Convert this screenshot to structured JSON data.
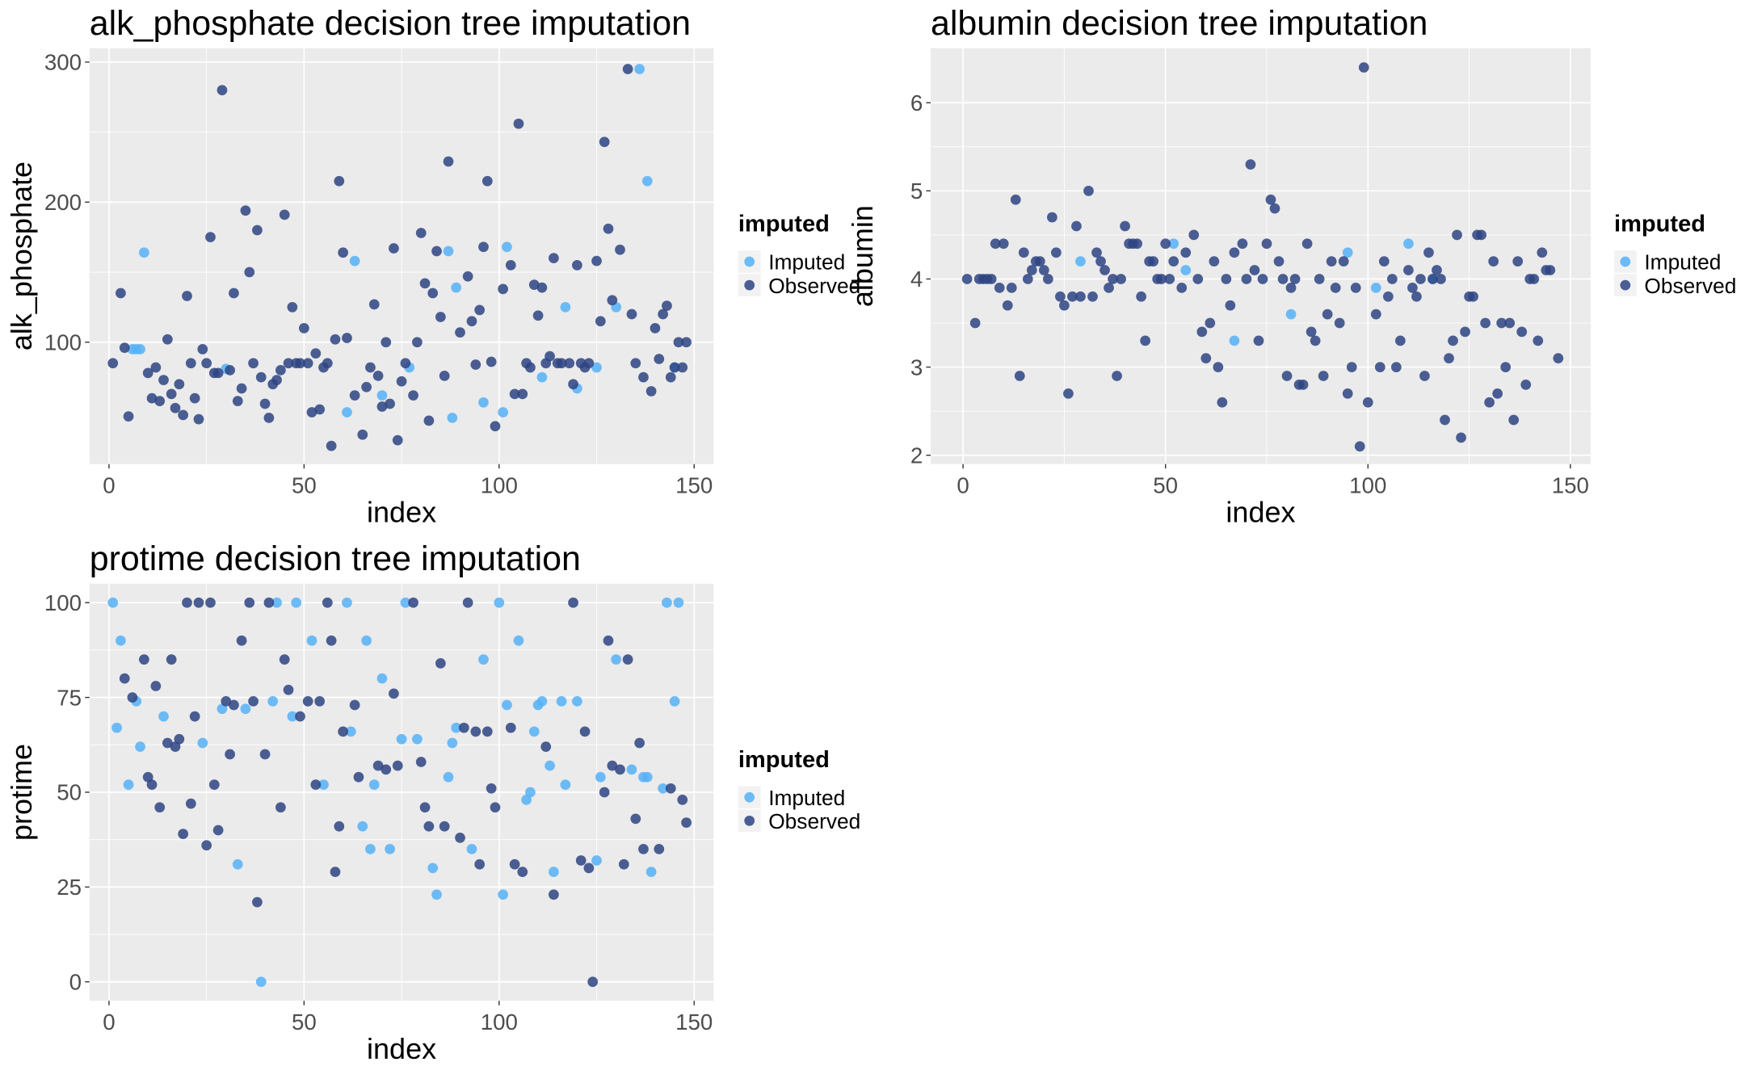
{
  "chart_data": [
    {
      "type": "scatter",
      "title": "alk_phosphate decision tree imputation",
      "x_label": "index",
      "y_label": "alk_phosphate",
      "legend_title": "imputed",
      "xlim": [
        -5,
        155
      ],
      "ylim": [
        13,
        310
      ],
      "xticks": [
        0,
        50,
        100,
        150
      ],
      "yticks": [
        100,
        200,
        300
      ],
      "grid": true,
      "legend": "right",
      "series": [
        {
          "name": "Imputed",
          "color": "#56B1F7",
          "x": [
            6,
            7,
            8,
            9,
            30,
            61,
            63,
            70,
            77,
            87,
            88,
            89,
            96,
            101,
            102,
            111,
            117,
            120,
            125,
            130,
            136,
            138,
            145
          ],
          "values": [
            95,
            95,
            95,
            164,
            81,
            50,
            158,
            62,
            82,
            165,
            46,
            139,
            57,
            50,
            168,
            75,
            125,
            67,
            82,
            125,
            295,
            215,
            82
          ]
        },
        {
          "name": "Observed",
          "color": "#2E4482",
          "x": [
            1,
            3,
            4,
            5,
            10,
            11,
            12,
            13,
            14,
            15,
            16,
            17,
            18,
            19,
            20,
            21,
            22,
            23,
            24,
            25,
            26,
            27,
            28,
            29,
            31,
            32,
            33,
            34,
            35,
            36,
            37,
            38,
            39,
            40,
            41,
            42,
            43,
            44,
            45,
            46,
            47,
            48,
            49,
            50,
            51,
            52,
            53,
            54,
            55,
            56,
            57,
            58,
            59,
            60,
            61,
            63,
            65,
            66,
            67,
            68,
            69,
            70,
            71,
            72,
            73,
            74,
            75,
            76,
            78,
            79,
            80,
            81,
            82,
            83,
            84,
            85,
            86,
            87,
            90,
            92,
            93,
            94,
            95,
            96,
            97,
            98,
            99,
            101,
            103,
            104,
            105,
            106,
            107,
            108,
            109,
            110,
            111,
            112,
            113,
            114,
            115,
            116,
            118,
            119,
            120,
            121,
            122,
            123,
            125,
            126,
            127,
            128,
            129,
            131,
            133,
            134,
            135,
            137,
            139,
            140,
            141,
            142,
            143,
            144,
            145,
            146,
            147,
            148
          ],
          "values": [
            85,
            135,
            96,
            47,
            78,
            60,
            82,
            58,
            73,
            102,
            63,
            53,
            70,
            48,
            133,
            85,
            60,
            45,
            95,
            85,
            175,
            78,
            78,
            280,
            80,
            135,
            58,
            67,
            194,
            150,
            85,
            180,
            75,
            56,
            46,
            70,
            73,
            80,
            191,
            85,
            125,
            85,
            85,
            110,
            85,
            50,
            92,
            52,
            82,
            85,
            26,
            102,
            215,
            164,
            103,
            62,
            34,
            68,
            82,
            127,
            76,
            54,
            100,
            56,
            167,
            30,
            72,
            85,
            62,
            100,
            178,
            142,
            44,
            135,
            165,
            118,
            76,
            229,
            107,
            147,
            115,
            84,
            123,
            168,
            215,
            86,
            40,
            138,
            155,
            63,
            256,
            63,
            85,
            82,
            141,
            119,
            139,
            85,
            90,
            160,
            85,
            85,
            85,
            70,
            155,
            85,
            82,
            85,
            158,
            115,
            243,
            181,
            130,
            166,
            295,
            120,
            85,
            75,
            65,
            110,
            88,
            120,
            126,
            75,
            82,
            100,
            82,
            100
          ]
        }
      ]
    },
    {
      "type": "scatter",
      "title": "albumin decision tree imputation",
      "x_label": "index",
      "y_label": "albumin",
      "legend_title": "imputed",
      "xlim": [
        -8,
        155
      ],
      "ylim": [
        1.9,
        6.62
      ],
      "xticks": [
        0,
        50,
        100,
        150
      ],
      "yticks": [
        2,
        3,
        4,
        5,
        6
      ],
      "grid": true,
      "legend": "right",
      "series": [
        {
          "name": "Imputed",
          "color": "#56B1F7",
          "x": [
            29,
            52,
            55,
            67,
            81,
            95,
            102,
            110,
            116
          ],
          "values": [
            4.2,
            4.4,
            4.1,
            3.3,
            3.6,
            4.3,
            3.9,
            4.4,
            4.0
          ]
        },
        {
          "name": "Observed",
          "color": "#2E4482",
          "x": [
            1,
            3,
            4,
            5,
            6,
            7,
            8,
            9,
            10,
            11,
            12,
            13,
            14,
            15,
            16,
            17,
            18,
            19,
            20,
            21,
            22,
            23,
            24,
            25,
            26,
            27,
            28,
            29,
            31,
            32,
            33,
            34,
            35,
            36,
            37,
            38,
            39,
            40,
            41,
            42,
            43,
            44,
            45,
            46,
            47,
            48,
            49,
            50,
            51,
            52,
            54,
            55,
            57,
            58,
            59,
            60,
            61,
            62,
            63,
            64,
            65,
            66,
            67,
            69,
            70,
            71,
            72,
            73,
            74,
            75,
            76,
            77,
            78,
            79,
            80,
            81,
            82,
            83,
            84,
            85,
            86,
            87,
            88,
            89,
            90,
            91,
            92,
            93,
            94,
            95,
            96,
            97,
            98,
            99,
            100,
            102,
            103,
            104,
            105,
            106,
            107,
            108,
            110,
            111,
            112,
            113,
            114,
            115,
            116,
            117,
            118,
            119,
            120,
            121,
            122,
            123,
            124,
            125,
            126,
            127,
            128,
            129,
            130,
            131,
            132,
            133,
            134,
            135,
            136,
            137,
            138,
            139,
            140,
            141,
            142,
            143,
            144,
            145,
            147
          ],
          "values": [
            4.0,
            3.5,
            4.0,
            4.0,
            4.0,
            4.0,
            4.4,
            3.9,
            4.4,
            3.7,
            3.9,
            4.9,
            2.9,
            4.3,
            4.0,
            4.1,
            4.2,
            4.2,
            4.1,
            4.0,
            4.7,
            4.3,
            3.8,
            3.7,
            2.7,
            3.8,
            4.6,
            3.8,
            5.0,
            3.8,
            4.3,
            4.2,
            4.1,
            3.9,
            4.0,
            2.9,
            4.0,
            4.6,
            4.4,
            4.4,
            4.4,
            3.8,
            3.3,
            4.2,
            4.2,
            4.0,
            4.0,
            4.4,
            4.0,
            4.2,
            3.9,
            4.3,
            4.5,
            4.0,
            3.4,
            3.1,
            3.5,
            4.2,
            3.0,
            2.6,
            4.0,
            3.7,
            4.3,
            4.4,
            4.0,
            5.3,
            4.1,
            3.3,
            4.0,
            4.4,
            4.9,
            4.8,
            4.2,
            4.0,
            2.9,
            3.9,
            4.0,
            2.8,
            2.8,
            4.4,
            3.4,
            3.3,
            4.0,
            2.9,
            3.6,
            4.2,
            3.9,
            3.5,
            4.2,
            2.7,
            3.0,
            3.9,
            2.1,
            6.4,
            2.6,
            3.6,
            3.0,
            4.2,
            3.8,
            4.0,
            3.0,
            3.3,
            4.1,
            3.9,
            3.8,
            4.0,
            2.9,
            4.3,
            4.0,
            4.1,
            4.0,
            2.4,
            3.1,
            3.3,
            4.5,
            2.2,
            3.4,
            3.8,
            3.8,
            4.5,
            4.5,
            3.5,
            2.6,
            4.2,
            2.7,
            3.5,
            3.0,
            3.5,
            2.4,
            4.2,
            3.4,
            2.8,
            4.0,
            4.0,
            3.3,
            4.3,
            4.1,
            4.1,
            3.1
          ]
        }
      ]
    },
    {
      "type": "scatter",
      "title": "protime decision tree imputation",
      "x_label": "index",
      "y_label": "protime",
      "legend_title": "imputed",
      "xlim": [
        -5,
        155
      ],
      "ylim": [
        -5,
        105
      ],
      "xticks": [
        0,
        50,
        100,
        150
      ],
      "yticks": [
        0,
        25,
        50,
        75,
        100
      ],
      "grid": true,
      "legend": "right",
      "series": [
        {
          "name": "Imputed",
          "color": "#56B1F7",
          "x": [
            1,
            2,
            3,
            5,
            7,
            8,
            14,
            24,
            29,
            33,
            35,
            39,
            42,
            43,
            47,
            48,
            52,
            55,
            61,
            62,
            65,
            66,
            67,
            68,
            70,
            72,
            75,
            76,
            79,
            83,
            84,
            87,
            88,
            89,
            93,
            96,
            100,
            101,
            102,
            105,
            107,
            108,
            109,
            110,
            111,
            113,
            114,
            116,
            117,
            120,
            125,
            126,
            130,
            134,
            137,
            138,
            139,
            142,
            143,
            145,
            146
          ],
          "values": [
            100,
            67,
            90,
            52,
            74,
            62,
            70,
            63,
            72,
            31,
            72,
            0,
            74,
            100,
            70,
            100,
            90,
            52,
            100,
            66,
            41,
            90,
            35,
            52,
            80,
            35,
            64,
            100,
            64,
            30,
            23,
            54,
            63,
            67,
            35,
            85,
            100,
            23,
            73,
            90,
            48,
            50,
            66,
            73,
            74,
            57,
            29,
            74,
            52,
            74,
            32,
            54,
            85,
            56,
            54,
            54,
            29,
            51,
            100,
            74,
            100
          ]
        },
        {
          "name": "Observed",
          "color": "#2E4482",
          "x": [
            4,
            6,
            9,
            10,
            11,
            12,
            13,
            15,
            16,
            17,
            18,
            19,
            20,
            21,
            22,
            23,
            25,
            26,
            27,
            28,
            30,
            31,
            32,
            34,
            36,
            37,
            38,
            40,
            41,
            44,
            45,
            46,
            49,
            51,
            53,
            54,
            56,
            57,
            58,
            59,
            60,
            63,
            64,
            69,
            71,
            73,
            74,
            78,
            80,
            81,
            82,
            85,
            86,
            90,
            91,
            92,
            94,
            95,
            97,
            98,
            99,
            103,
            104,
            106,
            112,
            114,
            119,
            121,
            122,
            123,
            124,
            127,
            128,
            129,
            131,
            132,
            133,
            135,
            136,
            137,
            141,
            144,
            147,
            148
          ],
          "values": [
            80,
            75,
            85,
            54,
            52,
            78,
            46,
            63,
            85,
            62,
            64,
            39,
            100,
            47,
            70,
            100,
            36,
            100,
            52,
            40,
            74,
            60,
            73,
            90,
            100,
            74,
            21,
            60,
            100,
            46,
            85,
            77,
            70,
            74,
            52,
            74,
            100,
            90,
            29,
            41,
            66,
            73,
            54,
            57,
            56,
            76,
            57,
            100,
            58,
            46,
            41,
            84,
            41,
            38,
            67,
            100,
            66,
            31,
            66,
            51,
            46,
            67,
            31,
            29,
            62,
            23,
            100,
            32,
            66,
            30,
            0,
            50,
            90,
            57,
            56,
            31,
            85,
            43,
            63,
            35,
            35,
            51,
            48,
            42
          ]
        }
      ]
    }
  ]
}
